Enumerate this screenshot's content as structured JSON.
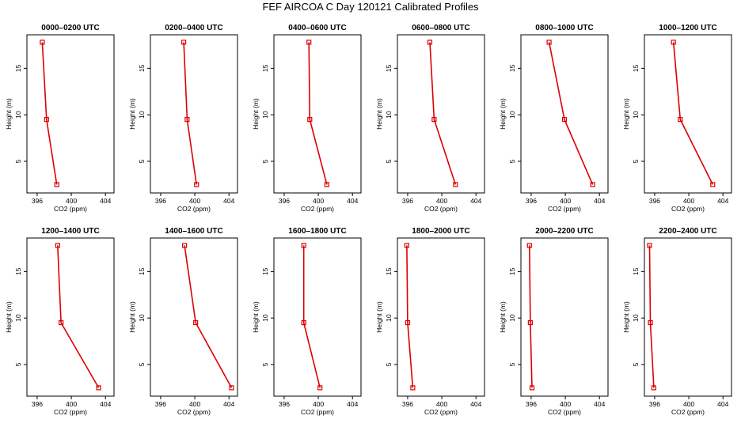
{
  "figure_title": "FEF AIRCOA C  Day 120121  Calibrated Profiles",
  "chart_data": [
    {
      "type": "line",
      "title": "0000–0200 UTC",
      "xlabel": "CO2 (ppm)",
      "ylabel": "Height (m)",
      "xlim": [
        394.8,
        405.0
      ],
      "ylim": [
        1.6,
        18.6
      ],
      "xticks": [
        396,
        400,
        404
      ],
      "yticks": [
        5,
        10,
        15
      ],
      "series": [
        {
          "name": "profile",
          "color": "#dd0000",
          "points": [
            {
              "co2": 396.6,
              "height": 17.8
            },
            {
              "co2": 397.1,
              "height": 9.5
            },
            {
              "co2": 398.3,
              "height": 2.5
            }
          ]
        }
      ]
    },
    {
      "type": "line",
      "title": "0200–0400 UTC",
      "xlabel": "CO2 (ppm)",
      "ylabel": "Height (m)",
      "xlim": [
        394.8,
        405.0
      ],
      "ylim": [
        1.6,
        18.6
      ],
      "xticks": [
        396,
        400,
        404
      ],
      "yticks": [
        5,
        10,
        15
      ],
      "series": [
        {
          "name": "profile",
          "color": "#dd0000",
          "points": [
            {
              "co2": 398.7,
              "height": 17.8
            },
            {
              "co2": 399.1,
              "height": 9.5
            },
            {
              "co2": 400.2,
              "height": 2.5
            }
          ]
        }
      ]
    },
    {
      "type": "line",
      "title": "0400–0600 UTC",
      "xlabel": "CO2 (ppm)",
      "ylabel": "Height (m)",
      "xlim": [
        394.8,
        405.0
      ],
      "ylim": [
        1.6,
        18.6
      ],
      "xticks": [
        396,
        400,
        404
      ],
      "yticks": [
        5,
        10,
        15
      ],
      "series": [
        {
          "name": "profile",
          "color": "#dd0000",
          "points": [
            {
              "co2": 398.9,
              "height": 17.8
            },
            {
              "co2": 399.0,
              "height": 9.5
            },
            {
              "co2": 401.0,
              "height": 2.5
            }
          ]
        }
      ]
    },
    {
      "type": "line",
      "title": "0600–0800 UTC",
      "xlabel": "CO2 (ppm)",
      "ylabel": "Height (m)",
      "xlim": [
        394.8,
        405.0
      ],
      "ylim": [
        1.6,
        18.6
      ],
      "xticks": [
        396,
        400,
        404
      ],
      "yticks": [
        5,
        10,
        15
      ],
      "series": [
        {
          "name": "profile",
          "color": "#dd0000",
          "points": [
            {
              "co2": 398.6,
              "height": 17.8
            },
            {
              "co2": 399.1,
              "height": 9.5
            },
            {
              "co2": 401.6,
              "height": 2.5
            }
          ]
        }
      ]
    },
    {
      "type": "line",
      "title": "0800–1000 UTC",
      "xlabel": "CO2 (ppm)",
      "ylabel": "Height (m)",
      "xlim": [
        394.8,
        405.0
      ],
      "ylim": [
        1.6,
        18.6
      ],
      "xticks": [
        396,
        400,
        404
      ],
      "yticks": [
        5,
        10,
        15
      ],
      "series": [
        {
          "name": "profile",
          "color": "#dd0000",
          "points": [
            {
              "co2": 398.1,
              "height": 17.8
            },
            {
              "co2": 399.9,
              "height": 9.5
            },
            {
              "co2": 403.2,
              "height": 2.5
            }
          ]
        }
      ]
    },
    {
      "type": "line",
      "title": "1000–1200 UTC",
      "xlabel": "CO2 (ppm)",
      "ylabel": "Height (m)",
      "xlim": [
        394.8,
        405.0
      ],
      "ylim": [
        1.6,
        18.6
      ],
      "xticks": [
        396,
        400,
        404
      ],
      "yticks": [
        5,
        10,
        15
      ],
      "series": [
        {
          "name": "profile",
          "color": "#dd0000",
          "points": [
            {
              "co2": 398.2,
              "height": 17.8
            },
            {
              "co2": 399.0,
              "height": 9.5
            },
            {
              "co2": 402.8,
              "height": 2.5
            }
          ]
        }
      ]
    },
    {
      "type": "line",
      "title": "1200–1400 UTC",
      "xlabel": "CO2 (ppm)",
      "ylabel": "Height (m)",
      "xlim": [
        394.8,
        405.0
      ],
      "ylim": [
        1.6,
        18.6
      ],
      "xticks": [
        396,
        400,
        404
      ],
      "yticks": [
        5,
        10,
        15
      ],
      "series": [
        {
          "name": "profile",
          "color": "#dd0000",
          "points": [
            {
              "co2": 398.4,
              "height": 17.8
            },
            {
              "co2": 398.8,
              "height": 9.5
            },
            {
              "co2": 403.2,
              "height": 2.5
            }
          ]
        }
      ]
    },
    {
      "type": "line",
      "title": "1400–1600 UTC",
      "xlabel": "CO2 (ppm)",
      "ylabel": "Height (m)",
      "xlim": [
        394.8,
        405.0
      ],
      "ylim": [
        1.6,
        18.6
      ],
      "xticks": [
        396,
        400,
        404
      ],
      "yticks": [
        5,
        10,
        15
      ],
      "series": [
        {
          "name": "profile",
          "color": "#dd0000",
          "points": [
            {
              "co2": 398.8,
              "height": 17.8
            },
            {
              "co2": 400.1,
              "height": 9.5
            },
            {
              "co2": 404.3,
              "height": 2.5
            }
          ]
        }
      ]
    },
    {
      "type": "line",
      "title": "1600–1800 UTC",
      "xlabel": "CO2 (ppm)",
      "ylabel": "Height (m)",
      "xlim": [
        394.8,
        405.0
      ],
      "ylim": [
        1.6,
        18.6
      ],
      "xticks": [
        396,
        400,
        404
      ],
      "yticks": [
        5,
        10,
        15
      ],
      "series": [
        {
          "name": "profile",
          "color": "#dd0000",
          "points": [
            {
              "co2": 398.3,
              "height": 17.8
            },
            {
              "co2": 398.3,
              "height": 9.5
            },
            {
              "co2": 400.2,
              "height": 2.5
            }
          ]
        }
      ]
    },
    {
      "type": "line",
      "title": "1800–2000 UTC",
      "xlabel": "CO2 (ppm)",
      "ylabel": "Height (m)",
      "xlim": [
        394.8,
        405.0
      ],
      "ylim": [
        1.6,
        18.6
      ],
      "xticks": [
        396,
        400,
        404
      ],
      "yticks": [
        5,
        10,
        15
      ],
      "series": [
        {
          "name": "profile",
          "color": "#dd0000",
          "points": [
            {
              "co2": 395.9,
              "height": 17.8
            },
            {
              "co2": 396.0,
              "height": 9.5
            },
            {
              "co2": 396.6,
              "height": 2.5
            }
          ]
        }
      ]
    },
    {
      "type": "line",
      "title": "2000–2200 UTC",
      "xlabel": "CO2 (ppm)",
      "ylabel": "Height (m)",
      "xlim": [
        394.8,
        405.0
      ],
      "ylim": [
        1.6,
        18.6
      ],
      "xticks": [
        396,
        400,
        404
      ],
      "yticks": [
        5,
        10,
        15
      ],
      "series": [
        {
          "name": "profile",
          "color": "#dd0000",
          "points": [
            {
              "co2": 395.8,
              "height": 17.8
            },
            {
              "co2": 395.9,
              "height": 9.5
            },
            {
              "co2": 396.1,
              "height": 2.5
            }
          ]
        }
      ]
    },
    {
      "type": "line",
      "title": "2200–2400 UTC",
      "xlabel": "CO2 (ppm)",
      "ylabel": "Height (m)",
      "xlim": [
        394.8,
        405.0
      ],
      "ylim": [
        1.6,
        18.6
      ],
      "xticks": [
        396,
        400,
        404
      ],
      "yticks": [
        5,
        10,
        15
      ],
      "series": [
        {
          "name": "profile",
          "color": "#dd0000",
          "points": [
            {
              "co2": 395.4,
              "height": 17.8
            },
            {
              "co2": 395.5,
              "height": 9.5
            },
            {
              "co2": 395.9,
              "height": 2.5
            }
          ]
        }
      ]
    }
  ]
}
